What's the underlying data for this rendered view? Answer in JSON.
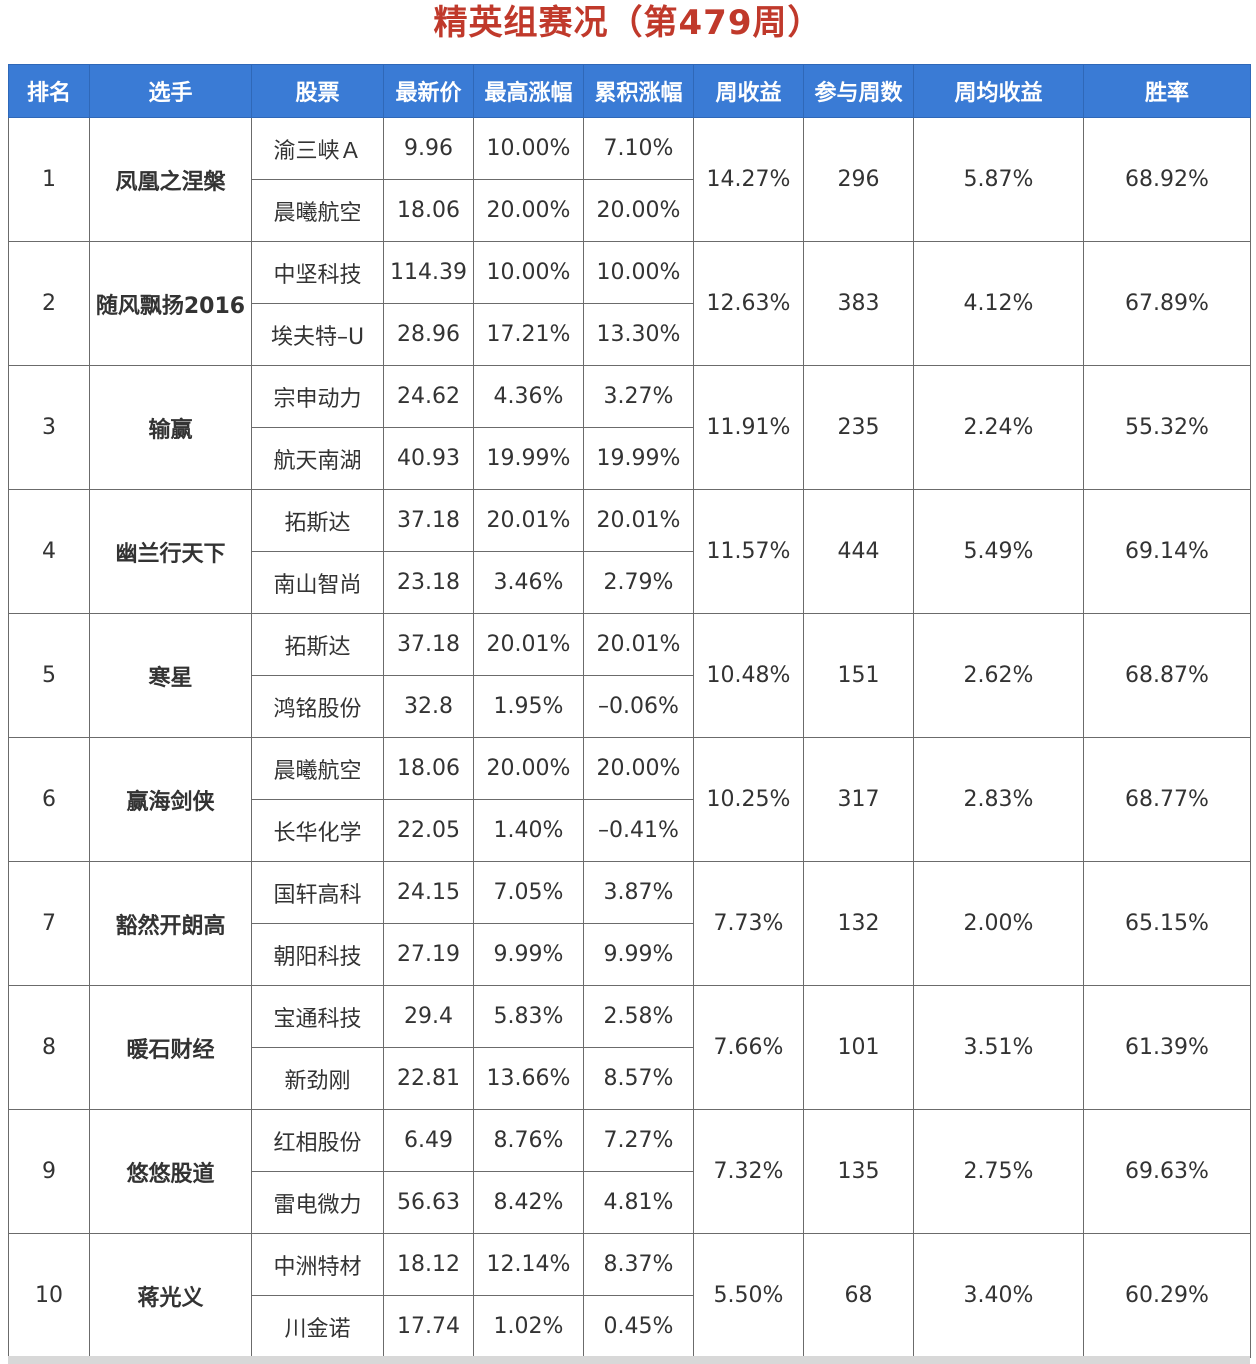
{
  "title": "精英组赛况（第479周）",
  "headers": [
    "排名",
    "选手",
    "股票",
    "最新价",
    "最高涨幅",
    "累积涨幅",
    "周收益",
    "参与周数",
    "周均收益",
    "胜率"
  ],
  "colors": {
    "header_bg": "#3a7bd5",
    "up": "#e0302d",
    "down": "#2e8a3a",
    "link": "#2a63b5",
    "title": "#c0392b"
  },
  "rows": [
    {
      "rank": "1",
      "player": "凤凰之涅槃",
      "week_return": "14.27%",
      "weeks": "296",
      "avg_return": "5.87%",
      "win_rate": "68.92%",
      "stocks": [
        {
          "name": "渝三峡Ａ",
          "price": "9.96",
          "max_gain": "10.00%",
          "cum_gain": "7.10%"
        },
        {
          "name": "晨曦航空",
          "price": "18.06",
          "max_gain": "20.00%",
          "cum_gain": "20.00%"
        }
      ]
    },
    {
      "rank": "2",
      "player": "随风飘扬2016",
      "week_return": "12.63%",
      "weeks": "383",
      "avg_return": "4.12%",
      "win_rate": "67.89%",
      "stocks": [
        {
          "name": "中坚科技",
          "price": "114.39",
          "max_gain": "10.00%",
          "cum_gain": "10.00%"
        },
        {
          "name": "埃夫特–U",
          "price": "28.96",
          "max_gain": "17.21%",
          "cum_gain": "13.30%"
        }
      ]
    },
    {
      "rank": "3",
      "player": "输赢",
      "week_return": "11.91%",
      "weeks": "235",
      "avg_return": "2.24%",
      "win_rate": "55.32%",
      "stocks": [
        {
          "name": "宗申动力",
          "price": "24.62",
          "max_gain": "4.36%",
          "cum_gain": "3.27%"
        },
        {
          "name": "航天南湖",
          "price": "40.93",
          "max_gain": "19.99%",
          "cum_gain": "19.99%"
        }
      ]
    },
    {
      "rank": "4",
      "player": "幽兰行天下",
      "week_return": "11.57%",
      "weeks": "444",
      "avg_return": "5.49%",
      "win_rate": "69.14%",
      "stocks": [
        {
          "name": "拓斯达",
          "price": "37.18",
          "max_gain": "20.01%",
          "cum_gain": "20.01%"
        },
        {
          "name": "南山智尚",
          "price": "23.18",
          "max_gain": "3.46%",
          "cum_gain": "2.79%"
        }
      ]
    },
    {
      "rank": "5",
      "player": "寒星",
      "week_return": "10.48%",
      "weeks": "151",
      "avg_return": "2.62%",
      "win_rate": "68.87%",
      "stocks": [
        {
          "name": "拓斯达",
          "price": "37.18",
          "max_gain": "20.01%",
          "cum_gain": "20.01%"
        },
        {
          "name": "鸿铭股份",
          "price": "32.8",
          "max_gain": "1.95%",
          "cum_gain": "–0.06%"
        }
      ]
    },
    {
      "rank": "6",
      "player": "赢海剑侠",
      "week_return": "10.25%",
      "weeks": "317",
      "avg_return": "2.83%",
      "win_rate": "68.77%",
      "stocks": [
        {
          "name": "晨曦航空",
          "price": "18.06",
          "max_gain": "20.00%",
          "cum_gain": "20.00%"
        },
        {
          "name": "长华化学",
          "price": "22.05",
          "max_gain": "1.40%",
          "cum_gain": "–0.41%"
        }
      ]
    },
    {
      "rank": "7",
      "player": "豁然开朗高",
      "week_return": "7.73%",
      "weeks": "132",
      "avg_return": "2.00%",
      "win_rate": "65.15%",
      "stocks": [
        {
          "name": "国轩高科",
          "price": "24.15",
          "max_gain": "7.05%",
          "cum_gain": "3.87%"
        },
        {
          "name": "朝阳科技",
          "price": "27.19",
          "max_gain": "9.99%",
          "cum_gain": "9.99%"
        }
      ]
    },
    {
      "rank": "8",
      "player": "暖石财经",
      "week_return": "7.66%",
      "weeks": "101",
      "avg_return": "3.51%",
      "win_rate": "61.39%",
      "stocks": [
        {
          "name": "宝通科技",
          "price": "29.4",
          "max_gain": "5.83%",
          "cum_gain": "2.58%"
        },
        {
          "name": "新劲刚",
          "price": "22.81",
          "max_gain": "13.66%",
          "cum_gain": "8.57%"
        }
      ]
    },
    {
      "rank": "9",
      "player": "悠悠股道",
      "week_return": "7.32%",
      "weeks": "135",
      "avg_return": "2.75%",
      "win_rate": "69.63%",
      "stocks": [
        {
          "name": "红相股份",
          "price": "6.49",
          "max_gain": "8.76%",
          "cum_gain": "7.27%"
        },
        {
          "name": "雷电微力",
          "price": "56.63",
          "max_gain": "8.42%",
          "cum_gain": "4.81%"
        }
      ]
    },
    {
      "rank": "10",
      "player": "蒋光义",
      "week_return": "5.50%",
      "weeks": "68",
      "avg_return": "3.40%",
      "win_rate": "60.29%",
      "stocks": [
        {
          "name": "中洲特材",
          "price": "18.12",
          "max_gain": "12.14%",
          "cum_gain": "8.37%"
        },
        {
          "name": "川金诺",
          "price": "17.74",
          "max_gain": "1.02%",
          "cum_gain": "0.45%"
        }
      ]
    }
  ]
}
